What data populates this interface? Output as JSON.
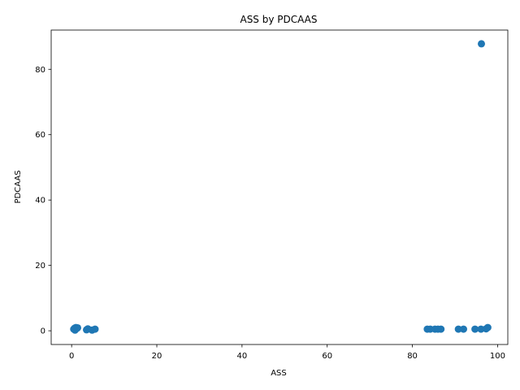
{
  "chart_data": {
    "type": "scatter",
    "title": "ASS by PDCAAS",
    "xlabel": "ASS",
    "ylabel": "PDCAAS",
    "xlim": [
      -4.8,
      102.4
    ],
    "ylim": [
      -4.2,
      92.0
    ],
    "xticks": [
      0,
      20,
      40,
      60,
      80,
      100
    ],
    "yticks": [
      0,
      20,
      40,
      60,
      80
    ],
    "grid": false,
    "marker_color": "#1f77b4",
    "series": [
      {
        "points": [
          {
            "x": 0.5,
            "y": 0.5
          },
          {
            "x": 0.7,
            "y": 0.8
          },
          {
            "x": 0.9,
            "y": 0.4
          },
          {
            "x": 1.0,
            "y": 1.0
          },
          {
            "x": 1.2,
            "y": 0.7
          },
          {
            "x": 0.8,
            "y": 0.2
          },
          {
            "x": 1.4,
            "y": 0.9
          },
          {
            "x": 3.5,
            "y": 0.3
          },
          {
            "x": 3.8,
            "y": 0.6
          },
          {
            "x": 4.8,
            "y": 0.2
          },
          {
            "x": 5.5,
            "y": 0.5
          },
          {
            "x": 83.5,
            "y": 0.5
          },
          {
            "x": 84.2,
            "y": 0.5
          },
          {
            "x": 85.3,
            "y": 0.5
          },
          {
            "x": 86.0,
            "y": 0.5
          },
          {
            "x": 86.7,
            "y": 0.5
          },
          {
            "x": 90.8,
            "y": 0.5
          },
          {
            "x": 92.0,
            "y": 0.5
          },
          {
            "x": 94.7,
            "y": 0.5
          },
          {
            "x": 96.1,
            "y": 0.5
          },
          {
            "x": 97.3,
            "y": 0.6
          },
          {
            "x": 97.7,
            "y": 1.0
          },
          {
            "x": 96.2,
            "y": 87.8
          }
        ]
      }
    ]
  }
}
